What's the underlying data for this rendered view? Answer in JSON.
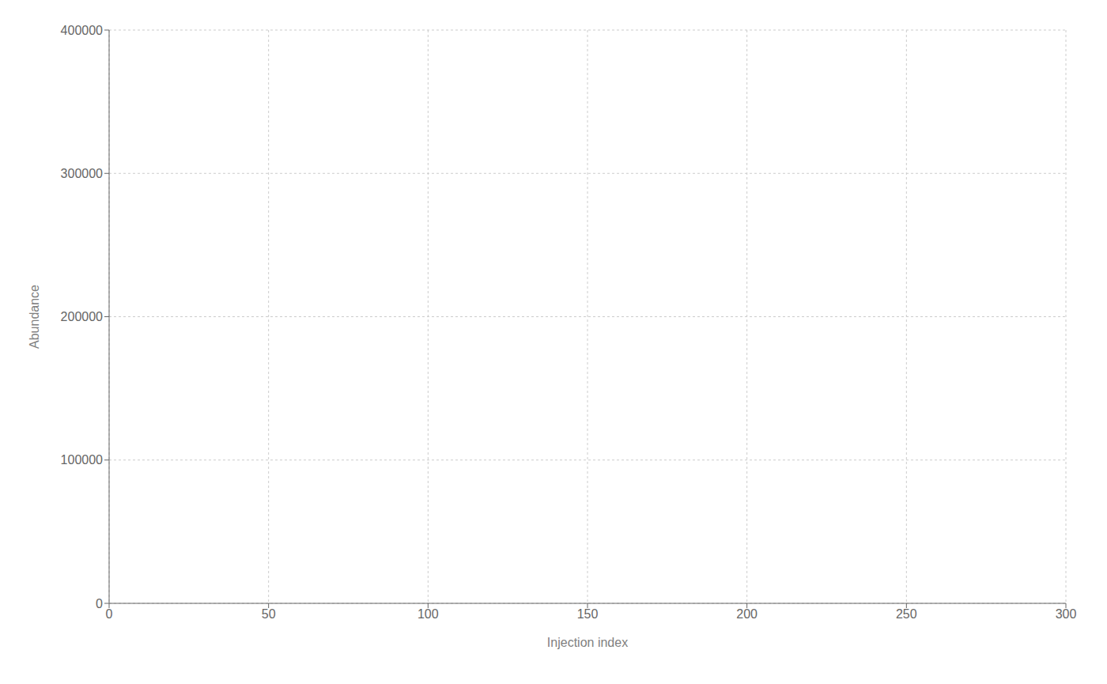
{
  "chart_data": {
    "type": "line",
    "xlabel": "Injection index",
    "ylabel": "Abundance",
    "xlim": [
      0,
      300
    ],
    "ylim": [
      0,
      400000
    ],
    "xticks": [
      0,
      50,
      100,
      150,
      200,
      250,
      300
    ],
    "yticks": [
      0,
      100000,
      200000,
      300000,
      400000
    ],
    "grid": true
  }
}
